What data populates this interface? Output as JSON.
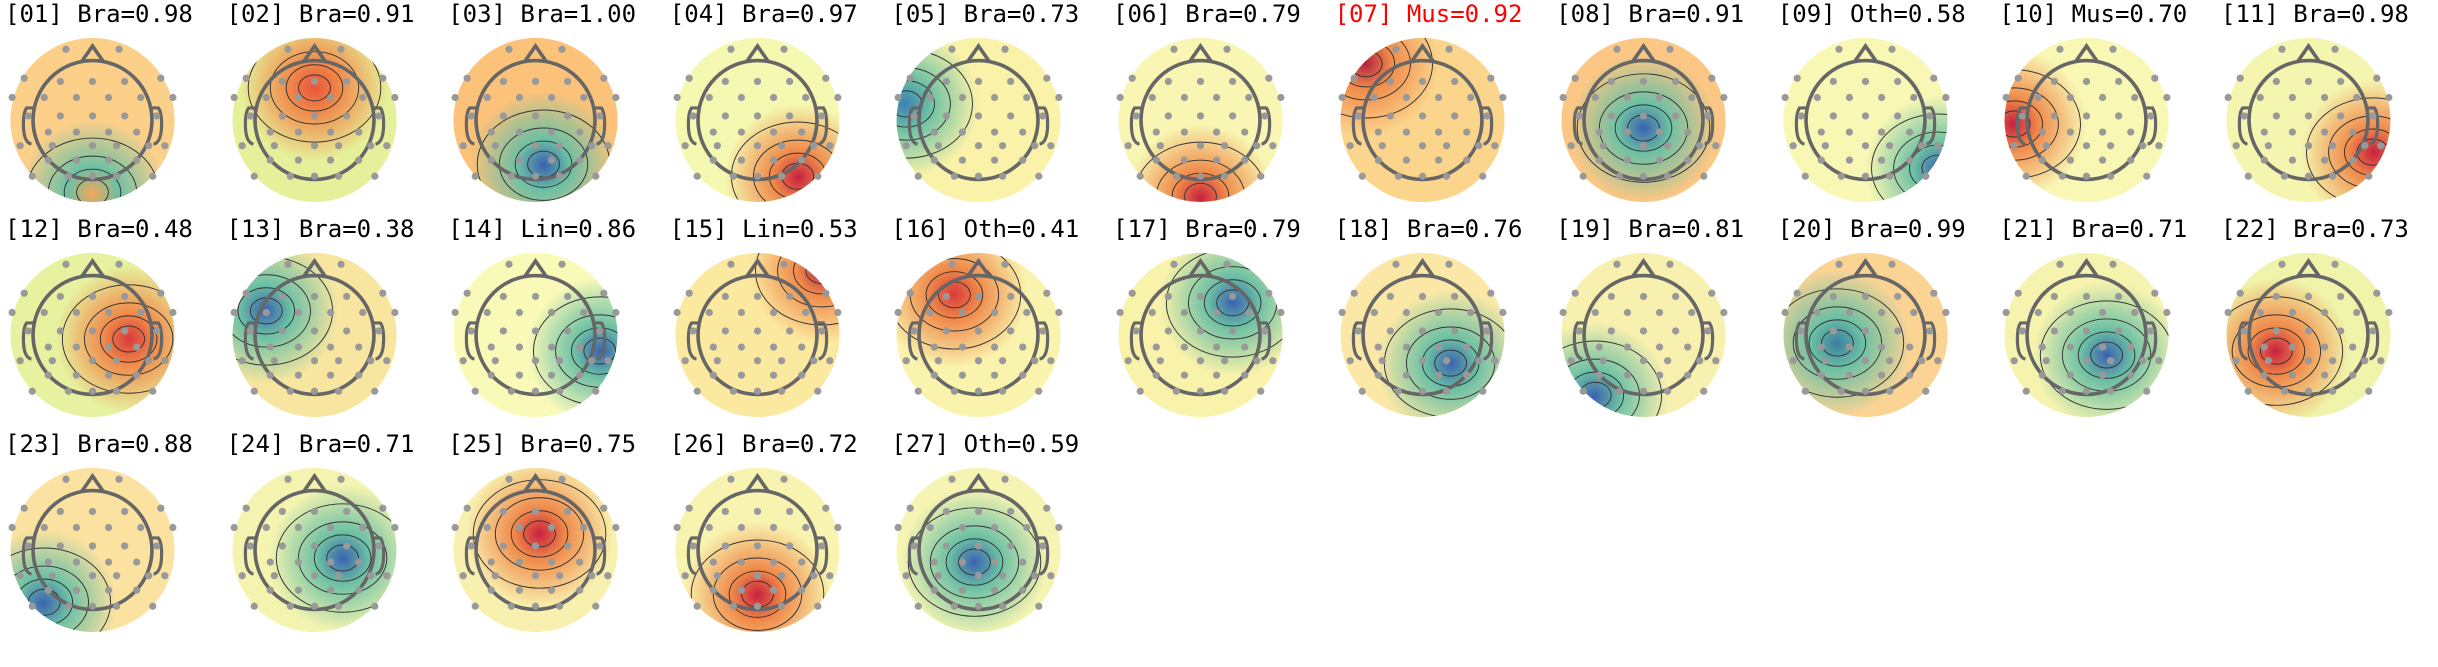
{
  "chart_data": {
    "type": "heatmap",
    "panels": [
      {
        "index": "01",
        "label": "Bra",
        "score": "0.98",
        "title": "[01] Bra=0.98",
        "flagged": false,
        "dominant": "#f6a55a"
      },
      {
        "index": "02",
        "label": "Bra",
        "score": "0.91",
        "title": "[02] Bra=0.91",
        "flagged": false,
        "dominant": "#e8553a"
      },
      {
        "index": "03",
        "label": "Bra",
        "score": "1.00",
        "title": "[03] Bra=1.00",
        "flagged": false,
        "dominant": "#3a62b0"
      },
      {
        "index": "04",
        "label": "Bra",
        "score": "0.97",
        "title": "[04] Bra=0.97",
        "flagged": false,
        "dominant": "#c8203f"
      },
      {
        "index": "05",
        "label": "Bra",
        "score": "0.73",
        "title": "[05] Bra=0.73",
        "flagged": false,
        "dominant": "#3d7fb5"
      },
      {
        "index": "06",
        "label": "Bra",
        "score": "0.79",
        "title": "[06] Bra=0.79",
        "flagged": false,
        "dominant": "#c8203f"
      },
      {
        "index": "07",
        "label": "Mus",
        "score": "0.92",
        "title": "[07] Mus=0.92",
        "flagged": true,
        "dominant": "#b0203f"
      },
      {
        "index": "08",
        "label": "Bra",
        "score": "0.91",
        "title": "[08] Bra=0.91",
        "flagged": false,
        "dominant": "#3a62b0"
      },
      {
        "index": "09",
        "label": "Oth",
        "score": "0.58",
        "title": "[09] Oth=0.58",
        "flagged": false,
        "dominant": "#3a62b0"
      },
      {
        "index": "10",
        "label": "Mus",
        "score": "0.70",
        "title": "[10] Mus=0.70",
        "flagged": false,
        "dominant": "#c8203f"
      },
      {
        "index": "11",
        "label": "Bra",
        "score": "0.98",
        "title": "[11] Bra=0.98",
        "flagged": false,
        "dominant": "#c8203f"
      },
      {
        "index": "12",
        "label": "Bra",
        "score": "0.48",
        "title": "[12] Bra=0.48",
        "flagged": false,
        "dominant": "#d83a3a"
      },
      {
        "index": "13",
        "label": "Bra",
        "score": "0.38",
        "title": "[13] Bra=0.38",
        "flagged": false,
        "dominant": "#3a62b0"
      },
      {
        "index": "14",
        "label": "Lin",
        "score": "0.86",
        "title": "[14] Lin=0.86",
        "flagged": false,
        "dominant": "#3a62b0"
      },
      {
        "index": "15",
        "label": "Lin",
        "score": "0.53",
        "title": "[15] Lin=0.53",
        "flagged": false,
        "dominant": "#b0203f"
      },
      {
        "index": "16",
        "label": "Oth",
        "score": "0.41",
        "title": "[16] Oth=0.41",
        "flagged": false,
        "dominant": "#d83a3a"
      },
      {
        "index": "17",
        "label": "Bra",
        "score": "0.79",
        "title": "[17] Bra=0.79",
        "flagged": false,
        "dominant": "#3a62b0"
      },
      {
        "index": "18",
        "label": "Bra",
        "score": "0.76",
        "title": "[18] Bra=0.76",
        "flagged": false,
        "dominant": "#3a62b0"
      },
      {
        "index": "19",
        "label": "Bra",
        "score": "0.81",
        "title": "[19] Bra=0.81",
        "flagged": false,
        "dominant": "#3a62b0"
      },
      {
        "index": "20",
        "label": "Bra",
        "score": "0.99",
        "title": "[20] Bra=0.99",
        "flagged": false,
        "dominant": "#3a7fa0"
      },
      {
        "index": "21",
        "label": "Bra",
        "score": "0.71",
        "title": "[21] Bra=0.71",
        "flagged": false,
        "dominant": "#3a62b0"
      },
      {
        "index": "22",
        "label": "Bra",
        "score": "0.73",
        "title": "[22] Bra=0.73",
        "flagged": false,
        "dominant": "#c8203f"
      },
      {
        "index": "23",
        "label": "Bra",
        "score": "0.88",
        "title": "[23] Bra=0.88",
        "flagged": false,
        "dominant": "#3a62b0"
      },
      {
        "index": "24",
        "label": "Bra",
        "score": "0.71",
        "title": "[24] Bra=0.71",
        "flagged": false,
        "dominant": "#3a62b0"
      },
      {
        "index": "25",
        "label": "Bra",
        "score": "0.75",
        "title": "[25] Bra=0.75",
        "flagged": false,
        "dominant": "#c8203f"
      },
      {
        "index": "26",
        "label": "Bra",
        "score": "0.72",
        "title": "[26] Bra=0.72",
        "flagged": false,
        "dominant": "#c8203f"
      },
      {
        "index": "27",
        "label": "Oth",
        "score": "0.59",
        "title": "[27] Oth=0.59",
        "flagged": false,
        "dominant": "#3a62b0"
      }
    ],
    "colormap": "Spectral_r",
    "flag_color": "#ff0000",
    "electrode_color": "#999999",
    "head_outline_color": "#666666",
    "layout": "grid 11 columns x 3 rows"
  }
}
